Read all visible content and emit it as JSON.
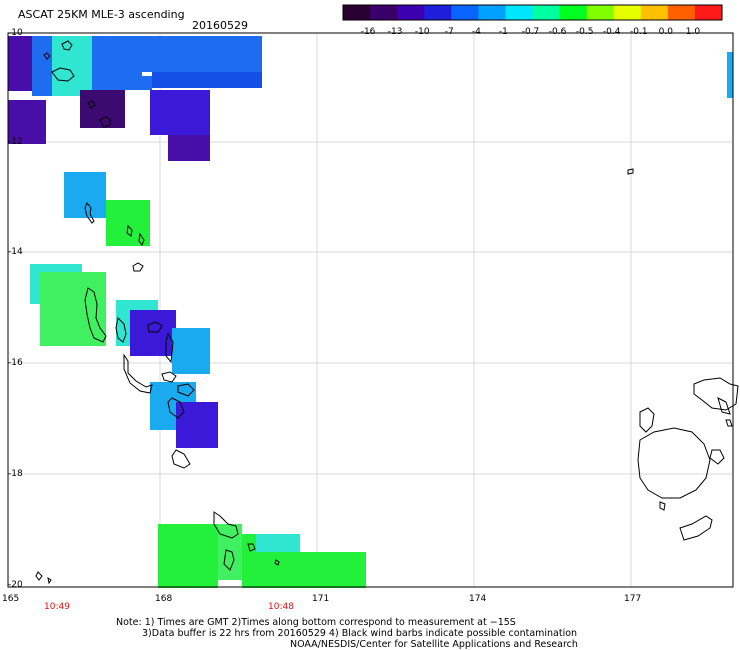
{
  "header": {
    "product": "ASCAT 25KM MLE-3 ascending",
    "date": "20160529"
  },
  "colorbar": {
    "labels": [
      "-16",
      "-13",
      "-10",
      "-7",
      "-4",
      "-1",
      "-0.7",
      "-0.6",
      "-0.5",
      "-0.4",
      "-0.1",
      "0.0",
      "1.0"
    ],
    "colors": [
      "#2a0030",
      "#3a006a",
      "#3c00b0",
      "#1e1edc",
      "#0a64ff",
      "#00a0ff",
      "#00e6ff",
      "#00ffa0",
      "#00ff20",
      "#80ff00",
      "#e6ff00",
      "#ffc000",
      "#ff6000",
      "#ff1a1a"
    ]
  },
  "axes": {
    "lat_labels": [
      "-10",
      "-12",
      "-14",
      "-16",
      "-18",
      "-20"
    ],
    "lon_labels": [
      "165",
      "168",
      "171",
      "174",
      "177"
    ]
  },
  "pass_times": [
    "10:49",
    "10:48"
  ],
  "notes": [
    "Note: 1) Times are GMT 2)Times along bottom correspond to measurement at −15S",
    "3)Data buffer is 22 hrs from 20160529 4) Black wind barbs indicate possible contamination",
    "NOAA/NESDIS/Center for Satellite Applications and Research"
  ],
  "map_colors": {
    "blue": "#1e6cf0",
    "blue_mid": "#1450e6",
    "indigo": "#3a1ad8",
    "purple": "#4a0ea8",
    "dark_purple": "#3c0a70",
    "cyan": "#1aaaf0",
    "aqua": "#30e6d0",
    "green": "#22f03a",
    "light_green": "#40f060",
    "grid": "#d8d8d8",
    "coast": "#000000"
  }
}
